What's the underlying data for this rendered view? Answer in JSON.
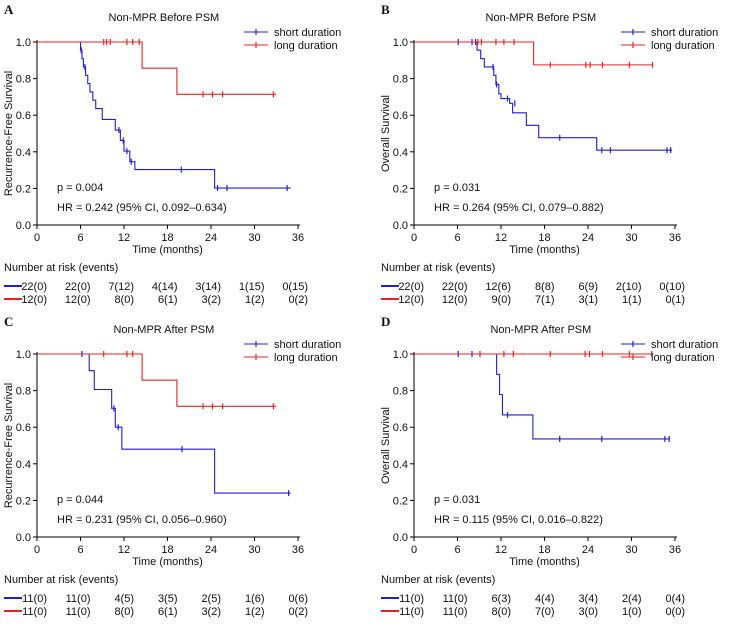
{
  "colors": {
    "short": "#1f1fd6",
    "long": "#e8231e",
    "axis": "#000000"
  },
  "common": {
    "xlabel": "Time (months)",
    "risk_title": "Number at risk (events)",
    "legend": [
      "short duration",
      "long duration"
    ]
  },
  "chart_data": [
    {
      "type": "line",
      "panel": "A",
      "title": "Non-MPR  Before PSM",
      "ylabel": "Recurrence-Free Survival",
      "xlabel": "Time (months)",
      "xlim": [
        0,
        36
      ],
      "ylim": [
        0,
        1.0
      ],
      "xticks": [
        "0",
        "6",
        "12",
        "18",
        "24",
        "30",
        "36"
      ],
      "yticks": [
        "0.0",
        "0.2",
        "0.4",
        "0.6",
        "0.8",
        "1.0"
      ],
      "p_text": "p = 0.004",
      "hr_text": "HR = 0.242 (95% CI, 0.092–0.634)",
      "series": [
        {
          "name": "short duration",
          "steps": [
            [
              0,
              1.0
            ],
            [
              6.0,
              0.955
            ],
            [
              6.2,
              0.909
            ],
            [
              6.4,
              0.864
            ],
            [
              6.7,
              0.818
            ],
            [
              7.0,
              0.773
            ],
            [
              7.3,
              0.727
            ],
            [
              7.7,
              0.682
            ],
            [
              8.1,
              0.636
            ],
            [
              9.0,
              0.577
            ],
            [
              10.8,
              0.519
            ],
            [
              11.5,
              0.462
            ],
            [
              12.0,
              0.404
            ],
            [
              12.8,
              0.346
            ],
            [
              13.5,
              0.303
            ],
            [
              24.5,
              0.202
            ],
            [
              35.0,
              0.202
            ]
          ],
          "censors": [
            [
              6.1,
              0.955
            ],
            [
              6.6,
              0.864
            ],
            [
              11.3,
              0.519
            ],
            [
              11.9,
              0.462
            ],
            [
              12.4,
              0.404
            ],
            [
              13.0,
              0.346
            ],
            [
              19.9,
              0.303
            ],
            [
              24.9,
              0.202
            ],
            [
              26.2,
              0.202
            ],
            [
              34.5,
              0.202
            ]
          ]
        },
        {
          "name": "long duration",
          "steps": [
            [
              0,
              1.0
            ],
            [
              14.5,
              0.857
            ],
            [
              19.3,
              0.714
            ],
            [
              33.0,
              0.714
            ]
          ],
          "censors": [
            [
              9.2,
              1.0
            ],
            [
              9.6,
              1.0
            ],
            [
              10.1,
              1.0
            ],
            [
              12.4,
              1.0
            ],
            [
              13.2,
              1.0
            ],
            [
              14.1,
              1.0
            ],
            [
              22.9,
              0.714
            ],
            [
              24.2,
              0.714
            ],
            [
              25.6,
              0.714
            ],
            [
              32.6,
              0.714
            ]
          ]
        }
      ],
      "risk_rows": [
        {
          "name": "short duration",
          "values": [
            "22(0)",
            "22(0)",
            "7(12)",
            "4(14)",
            "3(14)",
            "1(15)",
            "0(15)"
          ]
        },
        {
          "name": "long duration",
          "values": [
            "12(0)",
            "12(0)",
            "8(0)",
            "6(1)",
            "3(2)",
            "1(2)",
            "0(2)"
          ]
        }
      ]
    },
    {
      "type": "line",
      "panel": "B",
      "title": "Non-MPR  Before PSM",
      "ylabel": "Overall Survival",
      "xlabel": "Time (months)",
      "xlim": [
        0,
        36
      ],
      "ylim": [
        0,
        1.0
      ],
      "xticks": [
        "0",
        "6",
        "12",
        "18",
        "24",
        "30",
        "36"
      ],
      "yticks": [
        "0.0",
        "0.2",
        "0.4",
        "0.6",
        "0.8",
        "1.0"
      ],
      "p_text": "p = 0.031",
      "hr_text": "HR = 0.264 (95% CI, 0.079–0.882)",
      "series": [
        {
          "name": "short duration",
          "steps": [
            [
              0,
              1.0
            ],
            [
              8.7,
              0.955
            ],
            [
              9.2,
              0.909
            ],
            [
              9.7,
              0.864
            ],
            [
              11.0,
              0.818
            ],
            [
              11.3,
              0.768
            ],
            [
              11.7,
              0.717
            ],
            [
              12.0,
              0.691
            ],
            [
              13.2,
              0.665
            ],
            [
              13.6,
              0.613
            ],
            [
              15.5,
              0.545
            ],
            [
              17.2,
              0.477
            ],
            [
              25.2,
              0.409
            ],
            [
              35.6,
              0.409
            ]
          ],
          "censors": [
            [
              6.1,
              1.0
            ],
            [
              8.0,
              1.0
            ],
            [
              8.5,
              1.0
            ],
            [
              10.9,
              0.864
            ],
            [
              11.4,
              0.768
            ],
            [
              12.9,
              0.691
            ],
            [
              13.9,
              0.665
            ],
            [
              20.1,
              0.477
            ],
            [
              25.9,
              0.409
            ],
            [
              27.1,
              0.409
            ],
            [
              34.9,
              0.409
            ],
            [
              35.4,
              0.409
            ]
          ]
        },
        {
          "name": "long duration",
          "steps": [
            [
              0,
              1.0
            ],
            [
              16.5,
              0.875
            ],
            [
              33.0,
              0.875
            ]
          ],
          "censors": [
            [
              8.8,
              1.0
            ],
            [
              9.3,
              1.0
            ],
            [
              11.3,
              1.0
            ],
            [
              12.4,
              1.0
            ],
            [
              13.8,
              1.0
            ],
            [
              18.8,
              0.875
            ],
            [
              23.7,
              0.875
            ],
            [
              24.3,
              0.875
            ],
            [
              26.0,
              0.875
            ],
            [
              29.7,
              0.875
            ],
            [
              32.9,
              0.875
            ]
          ]
        }
      ],
      "risk_rows": [
        {
          "name": "short duration",
          "values": [
            "22(0)",
            "22(0)",
            "12(6)",
            "8(8)",
            "6(9)",
            "2(10)",
            "0(10)"
          ]
        },
        {
          "name": "long duration",
          "values": [
            "12(0)",
            "12(0)",
            "9(0)",
            "7(1)",
            "3(1)",
            "1(1)",
            "0(1)"
          ]
        }
      ]
    },
    {
      "type": "line",
      "panel": "C",
      "title": "Non-MPR  After PSM",
      "ylabel": "Recurrence-Free Survival",
      "xlabel": "Time (months)",
      "xlim": [
        0,
        36
      ],
      "ylim": [
        0,
        1.0
      ],
      "xticks": [
        "0",
        "6",
        "12",
        "18",
        "24",
        "30",
        "36"
      ],
      "yticks": [
        "0.0",
        "0.2",
        "0.4",
        "0.6",
        "0.8",
        "1.0"
      ],
      "p_text": "p = 0.044",
      "hr_text": "HR = 0.231 (95% CI, 0.056–0.960)",
      "series": [
        {
          "name": "short duration",
          "steps": [
            [
              0,
              1.0
            ],
            [
              7.2,
              0.909
            ],
            [
              7.9,
              0.806
            ],
            [
              10.3,
              0.703
            ],
            [
              10.8,
              0.6
            ],
            [
              11.7,
              0.48
            ],
            [
              24.5,
              0.24
            ],
            [
              35.0,
              0.24
            ]
          ],
          "censors": [
            [
              6.2,
              1.0
            ],
            [
              10.6,
              0.703
            ],
            [
              11.2,
              0.6
            ],
            [
              20.0,
              0.48
            ],
            [
              34.7,
              0.24
            ]
          ]
        },
        {
          "name": "long duration",
          "steps": [
            [
              0,
              1.0
            ],
            [
              14.5,
              0.857
            ],
            [
              19.3,
              0.714
            ],
            [
              33.0,
              0.714
            ]
          ],
          "censors": [
            [
              9.2,
              1.0
            ],
            [
              12.4,
              1.0
            ],
            [
              13.2,
              1.0
            ],
            [
              22.9,
              0.714
            ],
            [
              24.2,
              0.714
            ],
            [
              25.6,
              0.714
            ],
            [
              32.6,
              0.714
            ]
          ]
        }
      ],
      "risk_rows": [
        {
          "name": "short duration",
          "values": [
            "11(0)",
            "11(0)",
            "4(5)",
            "3(5)",
            "2(5)",
            "1(6)",
            "0(6)"
          ]
        },
        {
          "name": "long duration",
          "values": [
            "11(0)",
            "11(0)",
            "8(0)",
            "6(1)",
            "3(2)",
            "1(2)",
            "0(2)"
          ]
        }
      ]
    },
    {
      "type": "line",
      "panel": "D",
      "title": "Non-MPR  After PSM",
      "ylabel": "Overall Survival",
      "xlabel": "Time (months)",
      "xlim": [
        0,
        36
      ],
      "ylim": [
        0,
        1.0
      ],
      "xticks": [
        "0",
        "6",
        "12",
        "18",
        "24",
        "30",
        "36"
      ],
      "yticks": [
        "0.0",
        "0.2",
        "0.4",
        "0.6",
        "0.8",
        "1.0"
      ],
      "p_text": "p = 0.031",
      "hr_text": "HR = 0.115 (95% CI, 0.016–0.822)",
      "series": [
        {
          "name": "short duration",
          "steps": [
            [
              0,
              1.0
            ],
            [
              11.4,
              0.889
            ],
            [
              11.8,
              0.778
            ],
            [
              12.2,
              0.667
            ],
            [
              16.4,
              0.536
            ],
            [
              35.3,
              0.536
            ]
          ],
          "censors": [
            [
              6.1,
              1.0
            ],
            [
              8.0,
              1.0
            ],
            [
              12.9,
              0.667
            ],
            [
              20.1,
              0.536
            ],
            [
              25.9,
              0.536
            ],
            [
              34.6,
              0.536
            ],
            [
              35.2,
              0.536
            ]
          ]
        },
        {
          "name": "long duration",
          "steps": [
            [
              0,
              1.0
            ],
            [
              33.0,
              1.0
            ]
          ],
          "censors": [
            [
              9.1,
              1.0
            ],
            [
              12.4,
              1.0
            ],
            [
              13.7,
              1.0
            ],
            [
              18.8,
              1.0
            ],
            [
              23.6,
              1.0
            ],
            [
              24.2,
              1.0
            ],
            [
              26.0,
              1.0
            ],
            [
              29.7,
              1.0
            ],
            [
              32.8,
              1.0
            ]
          ]
        }
      ],
      "risk_rows": [
        {
          "name": "short duration",
          "values": [
            "11(0)",
            "11(0)",
            "6(3)",
            "4(4)",
            "3(4)",
            "2(4)",
            "0(4)"
          ]
        },
        {
          "name": "long duration",
          "values": [
            "11(0)",
            "11(0)",
            "8(0)",
            "7(0)",
            "3(0)",
            "1(0)",
            "0(0)"
          ]
        }
      ]
    }
  ]
}
